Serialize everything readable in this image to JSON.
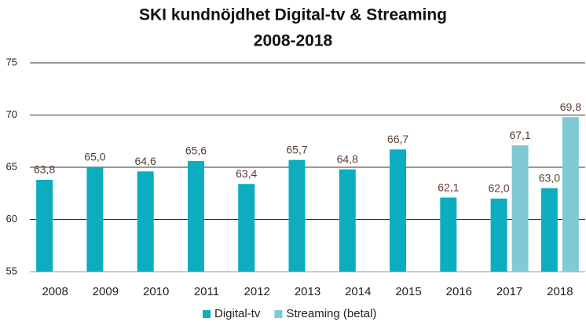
{
  "chart_data": {
    "type": "bar",
    "title": "SKI kundnöjdhet Digital-tv & Streaming",
    "subtitle": "2008-2018",
    "categories": [
      "2008",
      "2009",
      "2010",
      "2011",
      "2012",
      "2013",
      "2014",
      "2015",
      "2016",
      "2017",
      "2018"
    ],
    "series": [
      {
        "name": "Digital-tv",
        "color": "#0badbf",
        "values": [
          63.8,
          65.0,
          64.6,
          65.6,
          63.4,
          65.7,
          64.8,
          66.7,
          62.1,
          62.0,
          63.0
        ],
        "value_labels": [
          "63,8",
          "65,0",
          "64,6",
          "65,6",
          "63,4",
          "65,7",
          "64,8",
          "66,7",
          "62,1",
          "62,0",
          "63,0"
        ]
      },
      {
        "name": "Streaming (betal)",
        "color": "#7fcad3",
        "values": [
          null,
          null,
          null,
          null,
          null,
          null,
          null,
          null,
          null,
          67.1,
          69.8
        ],
        "value_labels": [
          null,
          null,
          null,
          null,
          null,
          null,
          null,
          null,
          null,
          "67,1",
          "69,8"
        ]
      }
    ],
    "ylim": [
      55,
      75
    ],
    "yticks": [
      55,
      60,
      65,
      70,
      75
    ],
    "grid": true,
    "legend": "bottom"
  }
}
